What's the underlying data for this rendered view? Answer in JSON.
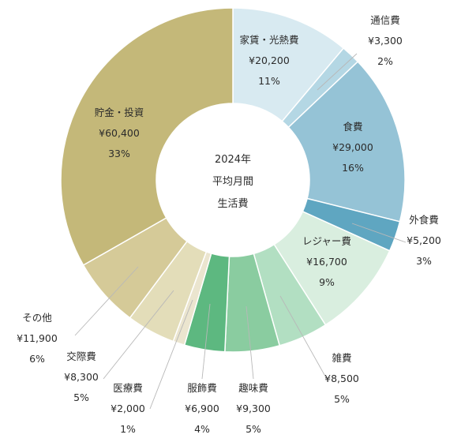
{
  "chart_data": {
    "type": "pie",
    "center_label": [
      "2024年",
      "平均月間",
      "生活費"
    ],
    "slices": [
      {
        "name": "家賃・光熱費",
        "amount": "¥20,200",
        "pct_label": "11%",
        "value": 20200,
        "color": "#d8eaf1"
      },
      {
        "name": "通信費",
        "amount": "¥3,300",
        "pct_label": "2%",
        "value": 3300,
        "color": "#b4d7e4"
      },
      {
        "name": "食費",
        "amount": "¥29,000",
        "pct_label": "16%",
        "value": 29000,
        "color": "#95c3d6"
      },
      {
        "name": "外食費",
        "amount": "¥5,200",
        "pct_label": "3%",
        "value": 5200,
        "color": "#5fa6c1"
      },
      {
        "name": "レジャー費",
        "amount": "¥16,700",
        "pct_label": "9%",
        "value": 16700,
        "color": "#d9eedf"
      },
      {
        "name": "雑費",
        "amount": "¥8,500",
        "pct_label": "5%",
        "value": 8500,
        "color": "#b2dfc2"
      },
      {
        "name": "趣味費",
        "amount": "¥9,300",
        "pct_label": "5%",
        "value": 9300,
        "color": "#8acca0"
      },
      {
        "name": "服飾費",
        "amount": "¥6,900",
        "pct_label": "4%",
        "value": 6900,
        "color": "#5db880"
      },
      {
        "name": "医療費",
        "amount": "¥2,000",
        "pct_label": "1%",
        "value": 2000,
        "color": "#ebe5cf"
      },
      {
        "name": "交際費",
        "amount": "¥8,300",
        "pct_label": "5%",
        "value": 8300,
        "color": "#e3ddb9"
      },
      {
        "name": "その他",
        "amount": "¥11,900",
        "pct_label": "6%",
        "value": 11900,
        "color": "#d5ca98"
      },
      {
        "name": "貯金・投資",
        "amount": "¥60,400",
        "pct_label": "33%",
        "value": 60400,
        "color": "#c4b879"
      }
    ]
  }
}
